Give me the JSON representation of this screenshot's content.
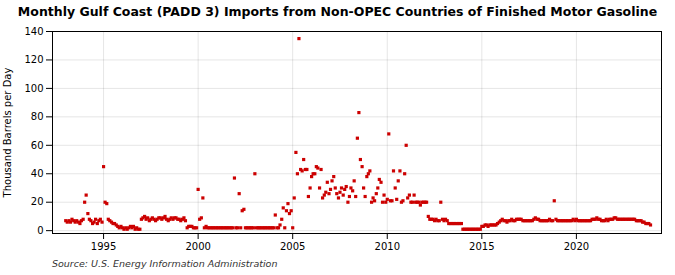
{
  "chart_data": {
    "type": "scatter",
    "title": "Monthly Gulf Coast (PADD 3) Imports from Non-OPEC Countries of Finished Motor Gasoline",
    "ylabel": "Thousand Barrels per Day",
    "annotations": [
      "Source: U.S. Energy Information Administration"
    ],
    "color": "#cc0000",
    "marker": "square",
    "grid": true,
    "xlim": [
      1992.3,
      2024.5
    ],
    "xticks": [
      1995,
      2000,
      2005,
      2010,
      2015,
      2020
    ],
    "ylim": [
      -2,
      140
    ],
    "yticks": [
      0,
      20,
      40,
      60,
      80,
      100,
      120,
      140
    ],
    "x": [
      1993.0,
      1993.08,
      1993.17,
      1993.25,
      1993.33,
      1993.42,
      1993.5,
      1993.58,
      1993.67,
      1993.75,
      1993.83,
      1993.92,
      1994.0,
      1994.08,
      1994.17,
      1994.25,
      1994.33,
      1994.42,
      1994.5,
      1994.58,
      1994.67,
      1994.75,
      1994.83,
      1994.92,
      1995.0,
      1995.08,
      1995.17,
      1995.25,
      1995.33,
      1995.42,
      1995.5,
      1995.58,
      1995.67,
      1995.75,
      1995.83,
      1995.92,
      1996.0,
      1996.08,
      1996.17,
      1996.25,
      1996.33,
      1996.42,
      1996.5,
      1996.58,
      1996.67,
      1996.75,
      1996.83,
      1996.92,
      1997.0,
      1997.08,
      1997.17,
      1997.25,
      1997.33,
      1997.42,
      1997.5,
      1997.58,
      1997.67,
      1997.75,
      1997.83,
      1997.92,
      1998.0,
      1998.08,
      1998.17,
      1998.25,
      1998.33,
      1998.42,
      1998.5,
      1998.58,
      1998.67,
      1998.75,
      1998.83,
      1998.92,
      1999.0,
      1999.08,
      1999.17,
      1999.25,
      1999.33,
      1999.42,
      1999.5,
      1999.58,
      1999.67,
      1999.75,
      1999.83,
      1999.92,
      2000.0,
      2000.08,
      2000.17,
      2000.25,
      2000.33,
      2000.42,
      2000.5,
      2000.58,
      2000.67,
      2000.75,
      2000.83,
      2000.92,
      2001.0,
      2001.08,
      2001.17,
      2001.25,
      2001.33,
      2001.42,
      2001.5,
      2001.58,
      2001.67,
      2001.75,
      2001.83,
      2001.92,
      2002.0,
      2002.08,
      2002.17,
      2002.25,
      2002.33,
      2002.42,
      2002.5,
      2002.58,
      2002.67,
      2002.75,
      2002.83,
      2002.92,
      2003.0,
      2003.08,
      2003.17,
      2003.25,
      2003.33,
      2003.42,
      2003.5,
      2003.58,
      2003.67,
      2003.75,
      2003.83,
      2003.92,
      2004.0,
      2004.08,
      2004.17,
      2004.25,
      2004.33,
      2004.42,
      2004.5,
      2004.58,
      2004.67,
      2004.75,
      2004.83,
      2004.92,
      2005.0,
      2005.08,
      2005.17,
      2005.25,
      2005.33,
      2005.42,
      2005.5,
      2005.58,
      2005.67,
      2005.75,
      2005.83,
      2005.92,
      2006.0,
      2006.08,
      2006.17,
      2006.25,
      2006.33,
      2006.42,
      2006.5,
      2006.58,
      2006.67,
      2006.75,
      2006.83,
      2006.92,
      2007.0,
      2007.08,
      2007.17,
      2007.25,
      2007.33,
      2007.42,
      2007.5,
      2007.58,
      2007.67,
      2007.75,
      2007.83,
      2007.92,
      2008.0,
      2008.08,
      2008.17,
      2008.25,
      2008.33,
      2008.42,
      2008.5,
      2008.58,
      2008.67,
      2008.75,
      2008.83,
      2008.92,
      2009.0,
      2009.08,
      2009.17,
      2009.25,
      2009.33,
      2009.42,
      2009.5,
      2009.58,
      2009.67,
      2009.75,
      2009.83,
      2009.92,
      2010.0,
      2010.08,
      2010.17,
      2010.25,
      2010.33,
      2010.42,
      2010.5,
      2010.58,
      2010.67,
      2010.75,
      2010.83,
      2010.92,
      2011.0,
      2011.08,
      2011.17,
      2011.25,
      2011.33,
      2011.42,
      2011.5,
      2011.58,
      2011.67,
      2011.75,
      2011.83,
      2011.92,
      2012.0,
      2012.08,
      2012.17,
      2012.25,
      2012.33,
      2012.42,
      2012.5,
      2012.58,
      2012.67,
      2012.75,
      2012.83,
      2012.92,
      2013.0,
      2013.08,
      2013.17,
      2013.25,
      2013.33,
      2013.42,
      2013.5,
      2013.58,
      2013.67,
      2013.75,
      2013.83,
      2013.92,
      2014.0,
      2014.08,
      2014.17,
      2014.25,
      2014.33,
      2014.42,
      2014.5,
      2014.58,
      2014.67,
      2014.75,
      2014.83,
      2014.92,
      2015.0,
      2015.08,
      2015.17,
      2015.25,
      2015.33,
      2015.42,
      2015.5,
      2015.58,
      2015.67,
      2015.75,
      2015.83,
      2015.92,
      2016.0,
      2016.08,
      2016.17,
      2016.25,
      2016.33,
      2016.42,
      2016.5,
      2016.58,
      2016.67,
      2016.75,
      2016.83,
      2016.92,
      2017.0,
      2017.08,
      2017.17,
      2017.25,
      2017.33,
      2017.42,
      2017.5,
      2017.58,
      2017.67,
      2017.75,
      2017.83,
      2017.92,
      2018.0,
      2018.08,
      2018.17,
      2018.25,
      2018.33,
      2018.42,
      2018.5,
      2018.58,
      2018.67,
      2018.75,
      2018.83,
      2018.92,
      2019.0,
      2019.08,
      2019.17,
      2019.25,
      2019.33,
      2019.42,
      2019.5,
      2019.58,
      2019.67,
      2019.75,
      2019.83,
      2019.92,
      2020.0,
      2020.08,
      2020.17,
      2020.25,
      2020.33,
      2020.42,
      2020.5,
      2020.58,
      2020.67,
      2020.75,
      2020.83,
      2020.92,
      2021.0,
      2021.08,
      2021.17,
      2021.25,
      2021.33,
      2021.42,
      2021.5,
      2021.58,
      2021.67,
      2021.75,
      2021.83,
      2021.92,
      2022.0,
      2022.08,
      2022.17,
      2022.25,
      2022.33,
      2022.42,
      2022.5,
      2022.58,
      2022.67,
      2022.75,
      2022.83,
      2022.92,
      2023.0,
      2023.08,
      2023.17,
      2023.25,
      2023.33,
      2023.42,
      2023.5,
      2023.58,
      2023.67,
      2023.75,
      2023.83,
      2023.92
    ],
    "values": [
      7,
      6,
      7,
      6,
      8,
      7,
      6,
      7,
      6,
      5,
      7,
      8,
      20,
      25,
      12,
      8,
      7,
      5,
      6,
      8,
      5,
      7,
      8,
      6,
      45,
      20,
      19,
      8,
      7,
      6,
      5,
      5,
      4,
      3,
      2,
      3,
      2,
      1,
      2,
      1,
      2,
      3,
      2,
      3,
      1,
      2,
      1,
      1,
      8,
      9,
      10,
      8,
      9,
      7,
      8,
      9,
      8,
      7,
      8,
      9,
      9,
      8,
      9,
      10,
      8,
      7,
      8,
      9,
      8,
      9,
      9,
      8,
      8,
      7,
      8,
      9,
      7,
      2,
      3,
      3,
      3,
      2,
      2,
      2,
      29,
      8,
      9,
      23,
      2,
      3,
      2,
      2,
      2,
      2,
      2,
      2,
      2,
      2,
      2,
      2,
      2,
      2,
      2,
      2,
      2,
      2,
      2,
      37,
      2,
      2,
      26,
      2,
      14,
      15,
      2,
      2,
      2,
      2,
      2,
      2,
      40,
      2,
      2,
      2,
      2,
      2,
      2,
      2,
      2,
      2,
      2,
      2,
      2,
      11,
      2,
      2,
      4,
      8,
      16,
      2,
      14,
      19,
      12,
      14,
      2,
      23,
      55,
      40,
      135,
      43,
      42,
      50,
      43,
      43,
      24,
      30,
      38,
      40,
      40,
      45,
      44,
      30,
      43,
      23,
      25,
      27,
      34,
      26,
      29,
      35,
      38,
      30,
      26,
      23,
      27,
      30,
      25,
      29,
      31,
      20,
      24,
      30,
      28,
      35,
      24,
      65,
      83,
      50,
      45,
      30,
      24,
      38,
      40,
      42,
      20,
      23,
      21,
      26,
      30,
      36,
      34,
      20,
      25,
      20,
      22,
      68,
      21,
      21,
      42,
      30,
      22,
      35,
      42,
      20,
      21,
      40,
      60,
      23,
      25,
      20,
      20,
      25,
      20,
      20,
      20,
      18,
      20,
      20,
      20,
      20,
      10,
      8,
      8,
      8,
      7,
      8,
      7,
      7,
      20,
      8,
      7,
      8,
      7,
      5,
      5,
      5,
      5,
      5,
      5,
      5,
      5,
      5,
      1,
      1,
      1,
      1,
      1,
      1,
      1,
      1,
      1,
      1,
      1,
      1,
      3,
      3,
      4,
      4,
      3,
      4,
      4,
      4,
      4,
      4,
      5,
      6,
      7,
      8,
      7,
      7,
      6,
      7,
      7,
      8,
      7,
      7,
      8,
      8,
      8,
      8,
      7,
      7,
      7,
      7,
      7,
      7,
      7,
      8,
      9,
      8,
      8,
      7,
      7,
      7,
      7,
      7,
      7,
      8,
      7,
      7,
      21,
      8,
      7,
      7,
      7,
      7,
      7,
      7,
      7,
      7,
      7,
      7,
      8,
      7,
      8,
      7,
      7,
      7,
      7,
      7,
      7,
      7,
      7,
      7,
      8,
      8,
      8,
      9,
      8,
      8,
      7,
      7,
      7,
      8,
      7,
      8,
      8,
      8,
      9,
      9,
      8,
      8,
      8,
      8,
      8,
      8,
      8,
      8,
      8,
      8,
      8,
      8,
      7,
      7,
      7,
      7,
      6,
      6,
      5,
      5,
      5,
      4
    ]
  }
}
